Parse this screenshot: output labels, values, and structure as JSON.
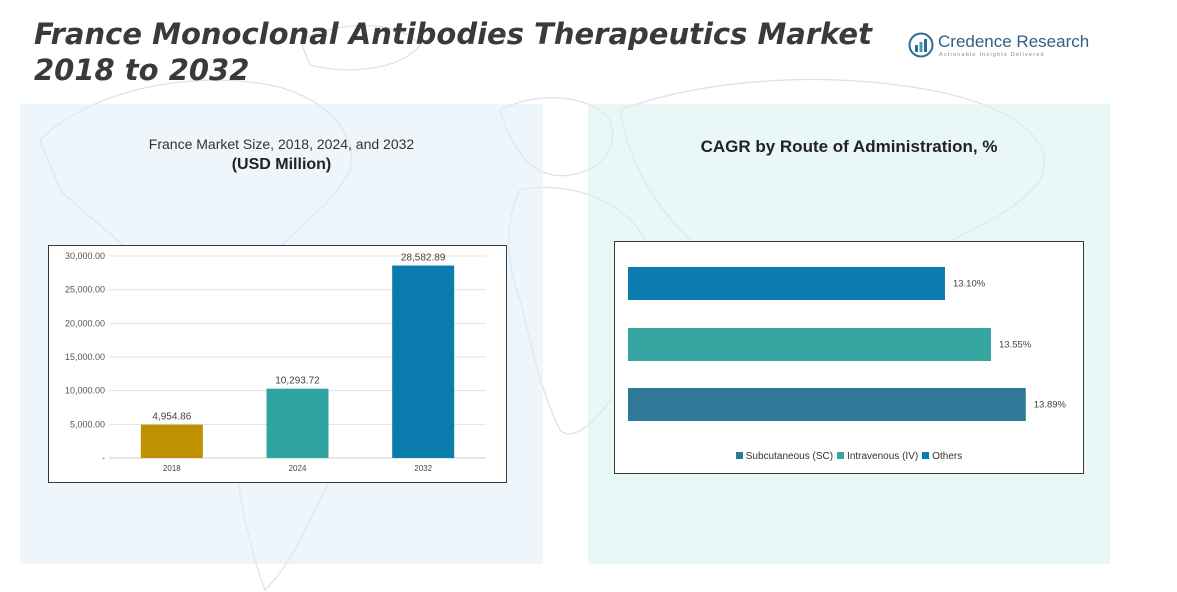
{
  "page": {
    "title": "France Monoclonal Antibodies Therapeutics Market 2018 to 2032"
  },
  "logo": {
    "name": "Credence Research",
    "tagline": "Actionable Insights Delivered"
  },
  "left_panel": {
    "subtitle": "France Market Size, 2018, 2024, and 2032",
    "unit": "(USD Million)"
  },
  "right_panel": {
    "title": "CAGR by Route of Administration, %"
  },
  "chart_data": [
    {
      "type": "bar",
      "categories": [
        "2018",
        "2024",
        "2032"
      ],
      "values": [
        4954.86,
        10293.72,
        28582.89
      ],
      "value_labels": [
        "4,954.86",
        "10,293.72",
        "28,582.89"
      ],
      "colors": [
        "#bf9000",
        "#2fa3a0",
        "#0a7cad"
      ],
      "ylim": [
        0,
        30000
      ],
      "yticks": [
        0,
        5000,
        10000,
        15000,
        20000,
        25000,
        30000
      ],
      "ytick_labels": [
        "-",
        "5,000.00",
        "10,000.00",
        "15,000.00",
        "20,000.00",
        "25,000.00",
        "30,000.00"
      ],
      "grid": true,
      "legend": "none"
    },
    {
      "type": "bar",
      "orientation": "horizontal",
      "series": [
        {
          "name": "Subcutaneous (SC)",
          "value": 13.89,
          "label": "13.89%",
          "color": "#2e7898"
        },
        {
          "name": "Intravenous (IV)",
          "value": 13.55,
          "label": "13.55%",
          "color": "#36a5a2"
        },
        {
          "name": "Others",
          "value": 13.1,
          "label": "13.10%",
          "color": "#0a7cad"
        }
      ],
      "xlim": [
        10,
        14
      ],
      "axes_visible": false,
      "legend": "bottom"
    }
  ]
}
